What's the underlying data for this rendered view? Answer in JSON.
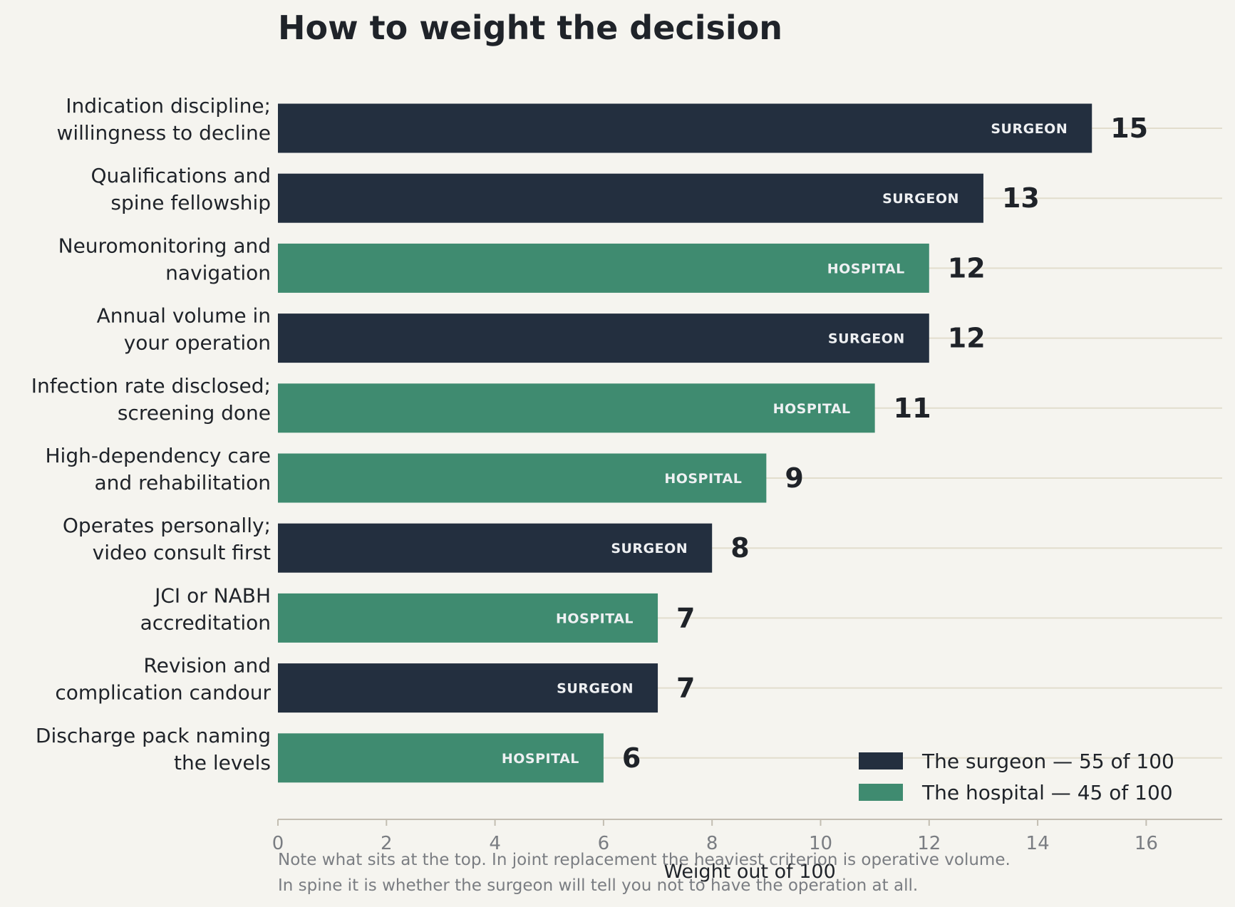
{
  "chart_data": {
    "type": "bar",
    "orientation": "horizontal",
    "title": "How to weight the decision",
    "xlabel": "Weight out of 100",
    "xlim": [
      0,
      17.4
    ],
    "xticks": [
      0,
      2,
      4,
      6,
      8,
      10,
      12,
      14,
      16
    ],
    "grid": "horizontal lines per category",
    "legend_position": "bottom-right",
    "colors": {
      "surgeon": "#232f3f",
      "hospital": "#3f8b70"
    },
    "legend": [
      {
        "group": "surgeon",
        "label": "The surgeon — 55 of 100"
      },
      {
        "group": "hospital",
        "label": "The hospital — 45 of 100"
      }
    ],
    "bars": [
      {
        "lines": [
          "Indication discipline;",
          "willingness to decline"
        ],
        "value": 15,
        "group": "surgeon",
        "tag": "SURGEON"
      },
      {
        "lines": [
          "Qualifications and",
          "spine fellowship"
        ],
        "value": 13,
        "group": "surgeon",
        "tag": "SURGEON"
      },
      {
        "lines": [
          "Neuromonitoring and",
          "navigation"
        ],
        "value": 12,
        "group": "hospital",
        "tag": "HOSPITAL"
      },
      {
        "lines": [
          "Annual volume in",
          "your operation"
        ],
        "value": 12,
        "group": "surgeon",
        "tag": "SURGEON"
      },
      {
        "lines": [
          "Infection rate disclosed;",
          "screening done"
        ],
        "value": 11,
        "group": "hospital",
        "tag": "HOSPITAL"
      },
      {
        "lines": [
          "High-dependency care",
          "and rehabilitation"
        ],
        "value": 9,
        "group": "hospital",
        "tag": "HOSPITAL"
      },
      {
        "lines": [
          "Operates personally;",
          "video consult first"
        ],
        "value": 8,
        "group": "surgeon",
        "tag": "SURGEON"
      },
      {
        "lines": [
          "JCI or NABH",
          "accreditation"
        ],
        "value": 7,
        "group": "hospital",
        "tag": "HOSPITAL"
      },
      {
        "lines": [
          "Revision and",
          "complication candour"
        ],
        "value": 7,
        "group": "surgeon",
        "tag": "SURGEON"
      },
      {
        "lines": [
          "Discharge pack naming",
          "the levels"
        ],
        "value": 6,
        "group": "hospital",
        "tag": "HOSPITAL"
      }
    ],
    "notes": [
      "Note what sits at the top. In joint replacement the heaviest criterion is operative volume.",
      "In spine it is whether the surgeon will tell you not to have the operation at all."
    ]
  }
}
